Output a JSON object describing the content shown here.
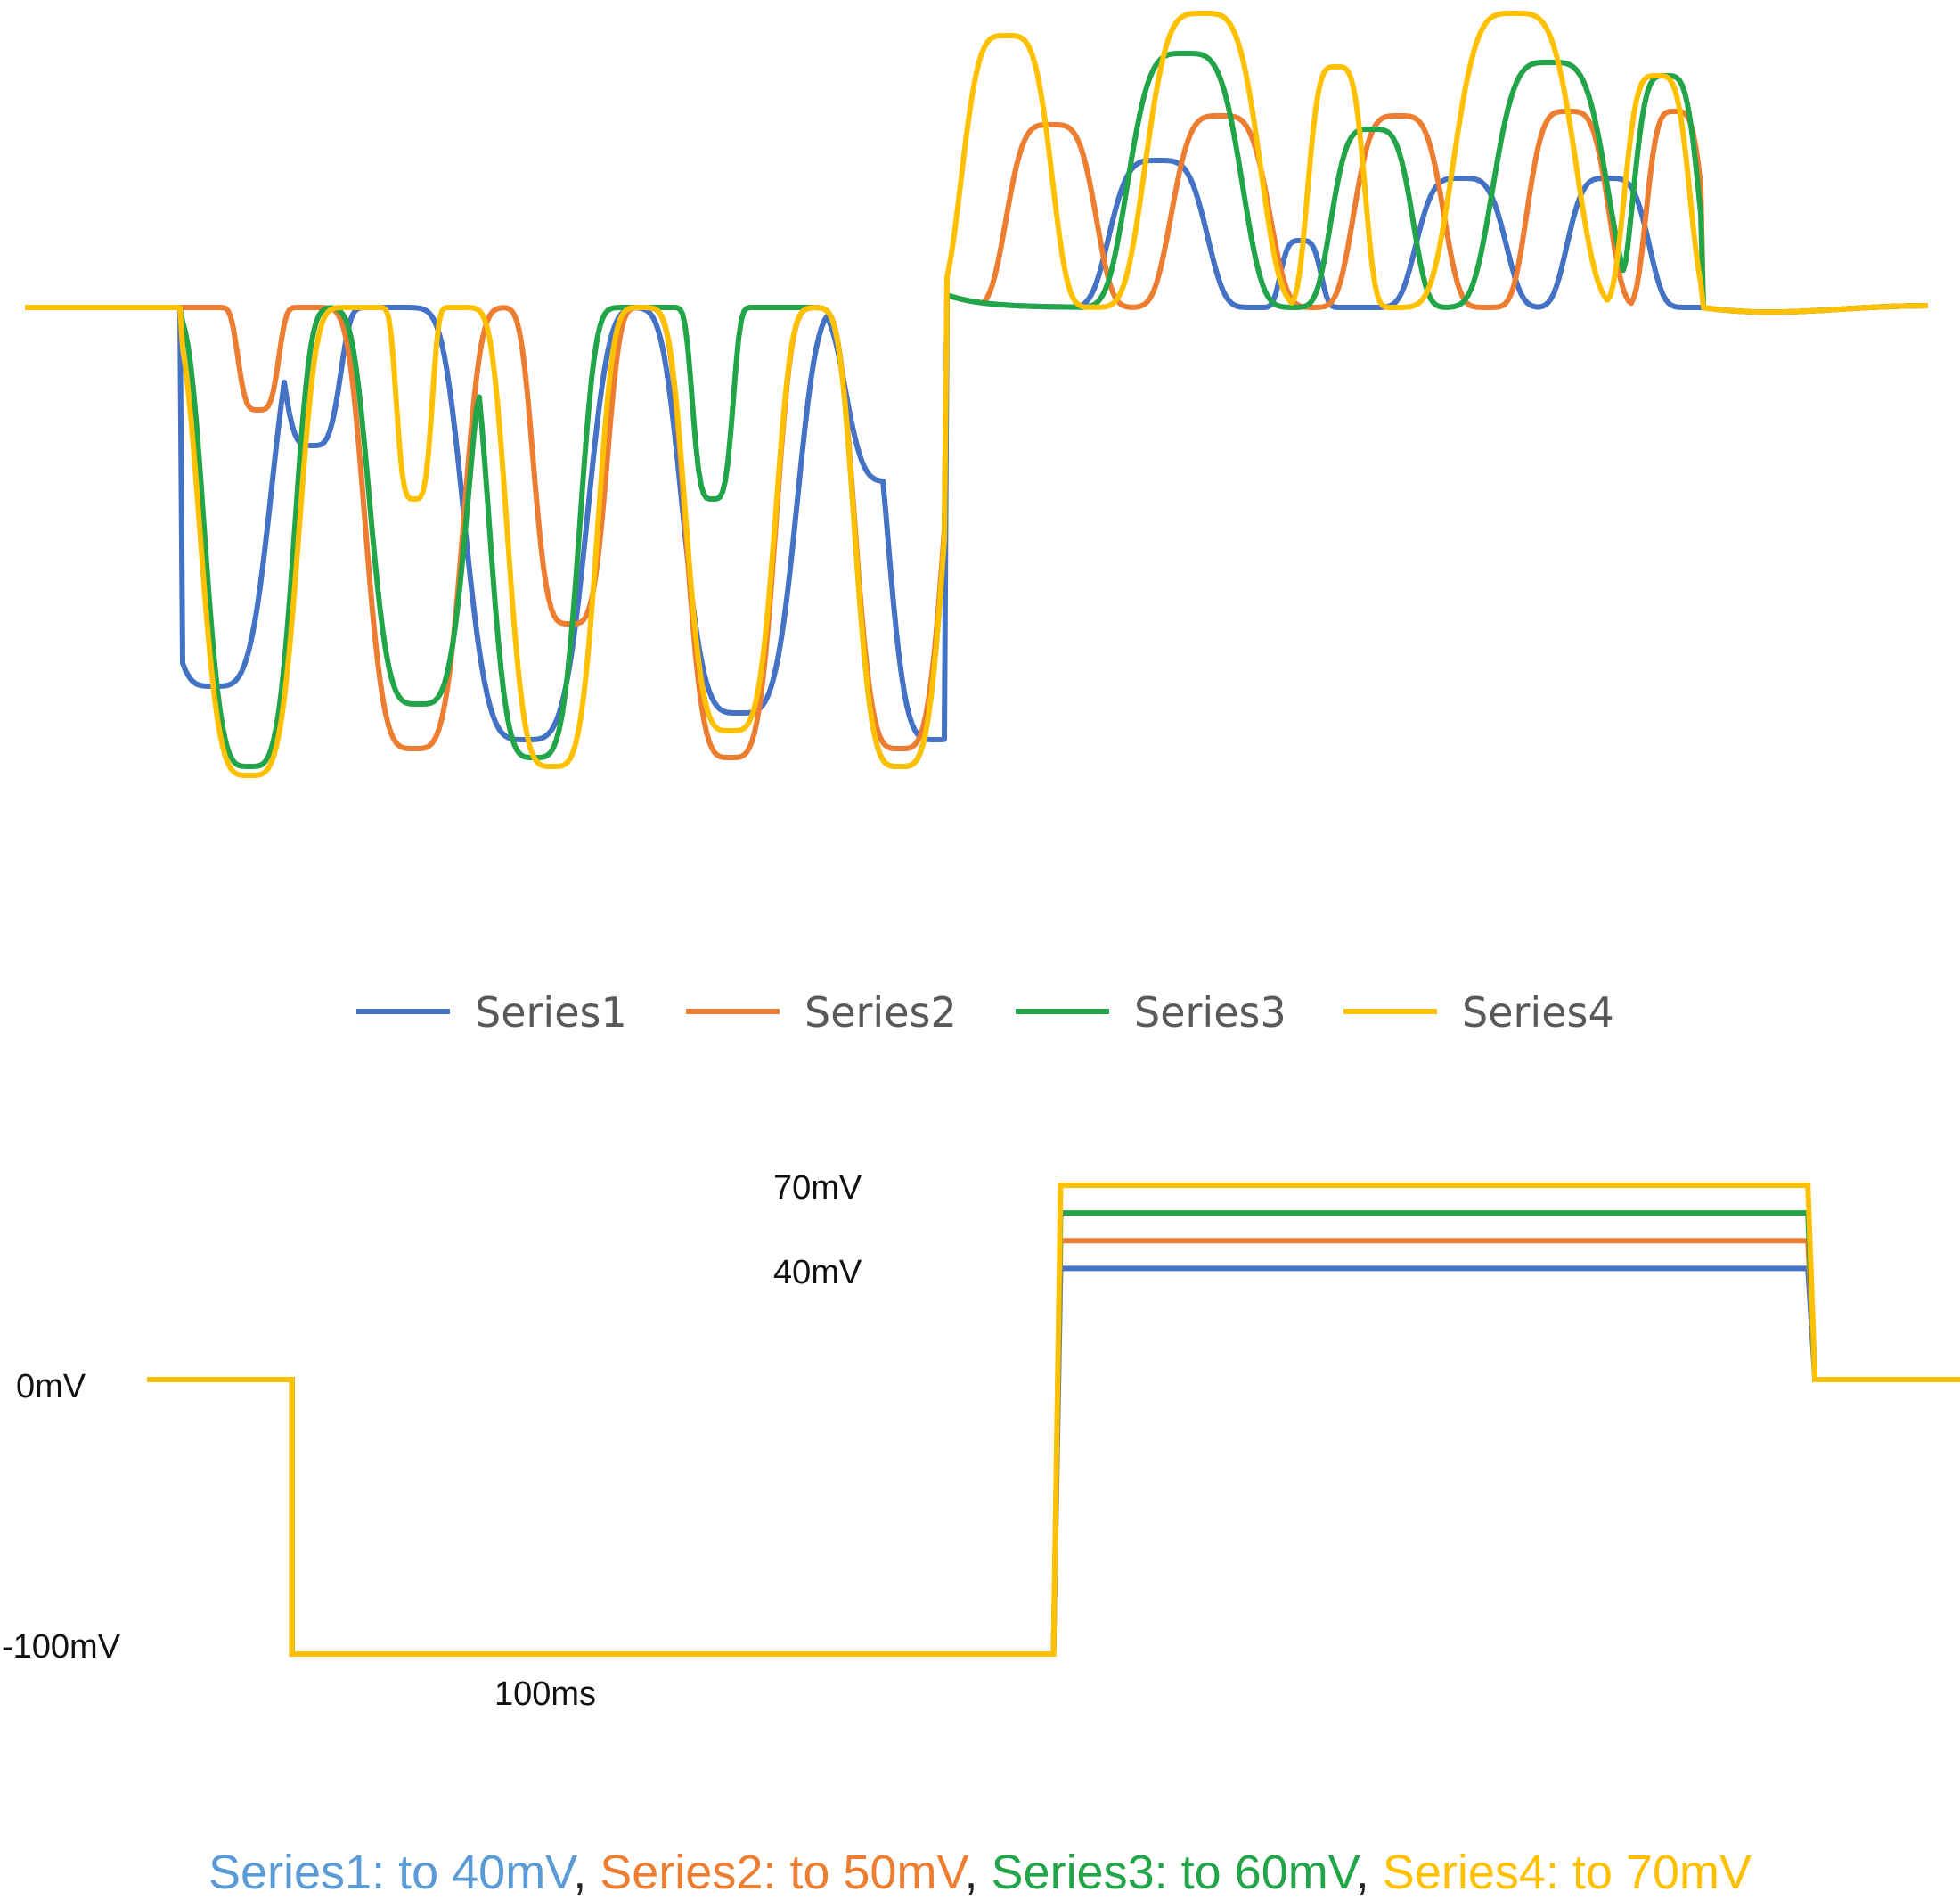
{
  "chart_data": [
    {
      "type": "line",
      "title": "",
      "xlabel": "",
      "ylabel": "",
      "grid": false,
      "axes_visible": false,
      "legend_position": "bottom",
      "series": [
        {
          "name": "Series1",
          "color": "#4472C4"
        },
        {
          "name": "Series2",
          "color": "#ED7D31"
        },
        {
          "name": "Series3",
          "color": "#21A548"
        },
        {
          "name": "Series4",
          "color": "#FFC000"
        }
      ]
    },
    {
      "type": "line",
      "title": "",
      "xlabel": "",
      "ylabel": "",
      "grid": false,
      "ylim": [
        -100,
        70
      ],
      "labels": {
        "level_70": "70mV",
        "level_40": "40mV",
        "level_0": "0mV",
        "level_neg100": "-100mV",
        "duration": "100ms"
      },
      "series": [
        {
          "name": "Series1",
          "color": "#4472C4",
          "x": [
            0,
            8,
            8,
            50,
            50,
            92,
            92,
            100
          ],
          "y": [
            0,
            0,
            -100,
            -100,
            40,
            40,
            0,
            0
          ]
        },
        {
          "name": "Series2",
          "color": "#ED7D31",
          "x": [
            0,
            8,
            8,
            50,
            50,
            92,
            92,
            100
          ],
          "y": [
            0,
            0,
            -100,
            -100,
            50,
            50,
            0,
            0
          ]
        },
        {
          "name": "Series3",
          "color": "#21A548",
          "x": [
            0,
            8,
            8,
            50,
            50,
            92,
            92,
            100
          ],
          "y": [
            0,
            0,
            -100,
            -100,
            60,
            60,
            0,
            0
          ]
        },
        {
          "name": "Series4",
          "color": "#FFC000",
          "x": [
            0,
            8,
            8,
            50,
            50,
            92,
            92,
            100
          ],
          "y": [
            0,
            0,
            -100,
            -100,
            70,
            70,
            0,
            0
          ]
        }
      ]
    }
  ],
  "caption": [
    {
      "text": "Series1: to 40mV",
      "color": "#5B9BD5"
    },
    {
      "text": ", ",
      "color": "#222222"
    },
    {
      "text": "Series2: to 50mV",
      "color": "#ED7D31"
    },
    {
      "text": ", ",
      "color": "#222222"
    },
    {
      "text": "Series3: to 60mV",
      "color": "#21A548"
    },
    {
      "text": ", ",
      "color": "#222222"
    },
    {
      "text": "Series4: to 70mV",
      "color": "#FFC000"
    }
  ]
}
